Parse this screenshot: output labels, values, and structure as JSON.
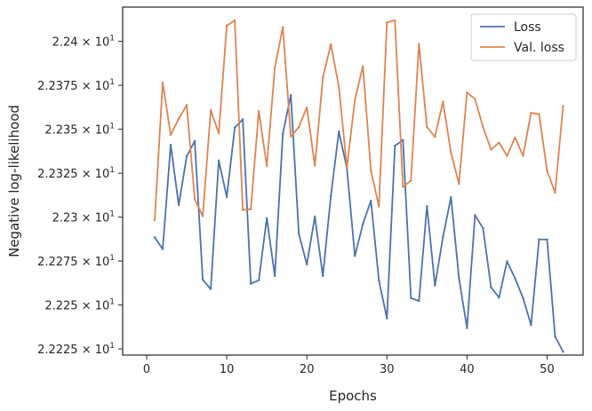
{
  "chart_data": {
    "type": "line",
    "title": "",
    "xlabel": "Epochs",
    "ylabel": "Negative log-likelihood",
    "xlim": [
      -3,
      54.5
    ],
    "ylim": [
      22.2215,
      22.4195
    ],
    "xticks": [
      0,
      10,
      20,
      30,
      40,
      50
    ],
    "xtick_labels": [
      "0",
      "10",
      "20",
      "30",
      "40",
      "50"
    ],
    "yticks": [
      22.225,
      22.25,
      22.275,
      22.3,
      22.325,
      22.35,
      22.375,
      22.4
    ],
    "ytick_labels": [
      {
        "mantissa": "2.2225",
        "exp": "1"
      },
      {
        "mantissa": "2.225",
        "exp": "1"
      },
      {
        "mantissa": "2.2275",
        "exp": "1"
      },
      {
        "mantissa": "2.23",
        "exp": "1"
      },
      {
        "mantissa": "2.2325",
        "exp": "1"
      },
      {
        "mantissa": "2.235",
        "exp": "1"
      },
      {
        "mantissa": "2.2375",
        "exp": "1"
      },
      {
        "mantissa": "2.24",
        "exp": "1"
      }
    ],
    "grid": false,
    "legend_position": "top-right",
    "x": [
      1,
      2,
      3,
      4,
      5,
      6,
      7,
      8,
      9,
      10,
      11,
      12,
      13,
      14,
      15,
      16,
      17,
      18,
      19,
      20,
      21,
      22,
      23,
      24,
      25,
      26,
      27,
      28,
      29,
      30,
      31,
      32,
      33,
      34,
      35,
      36,
      37,
      38,
      39,
      40,
      41,
      42,
      43,
      44,
      45,
      46,
      47,
      48,
      49,
      50,
      51,
      52
    ],
    "series": [
      {
        "name": "Loss",
        "color": "#4c72b0",
        "values": [
          22.2885,
          22.2818,
          22.3411,
          22.3069,
          22.3346,
          22.3433,
          22.2644,
          22.259,
          22.3322,
          22.3115,
          22.3509,
          22.3556,
          22.2621,
          22.2641,
          22.2994,
          22.2665,
          22.3473,
          22.3694,
          22.2905,
          22.2731,
          22.3003,
          22.2665,
          22.3121,
          22.3487,
          22.3279,
          22.2779,
          22.2961,
          22.3093,
          22.264,
          22.2424,
          22.3406,
          22.3438,
          22.254,
          22.2523,
          22.3062,
          22.2611,
          22.2887,
          22.3114,
          22.2652,
          22.2369,
          22.3011,
          22.2937,
          22.2601,
          22.2542,
          22.2748,
          22.2652,
          22.254,
          22.2386,
          22.2873,
          22.2873,
          22.2322,
          22.2234
        ]
      },
      {
        "name": "Val. loss",
        "color": "#dd8452",
        "values": [
          22.2983,
          22.3766,
          22.3468,
          22.356,
          22.3637,
          22.3102,
          22.3005,
          22.3609,
          22.3477,
          22.4089,
          22.4119,
          22.3041,
          22.3045,
          22.3603,
          22.329,
          22.385,
          22.4081,
          22.3459,
          22.3512,
          22.3624,
          22.3292,
          22.3793,
          22.3983,
          22.3742,
          22.3282,
          22.3667,
          22.3859,
          22.3266,
          22.3061,
          22.4108,
          22.412,
          22.3172,
          22.3208,
          22.3985,
          22.3512,
          22.3456,
          22.3657,
          22.3366,
          22.3189,
          22.3709,
          22.3672,
          22.3513,
          22.3384,
          22.3424,
          22.3349,
          22.3453,
          22.3349,
          22.3593,
          22.3586,
          22.3265,
          22.3139,
          22.3632
        ]
      }
    ]
  }
}
